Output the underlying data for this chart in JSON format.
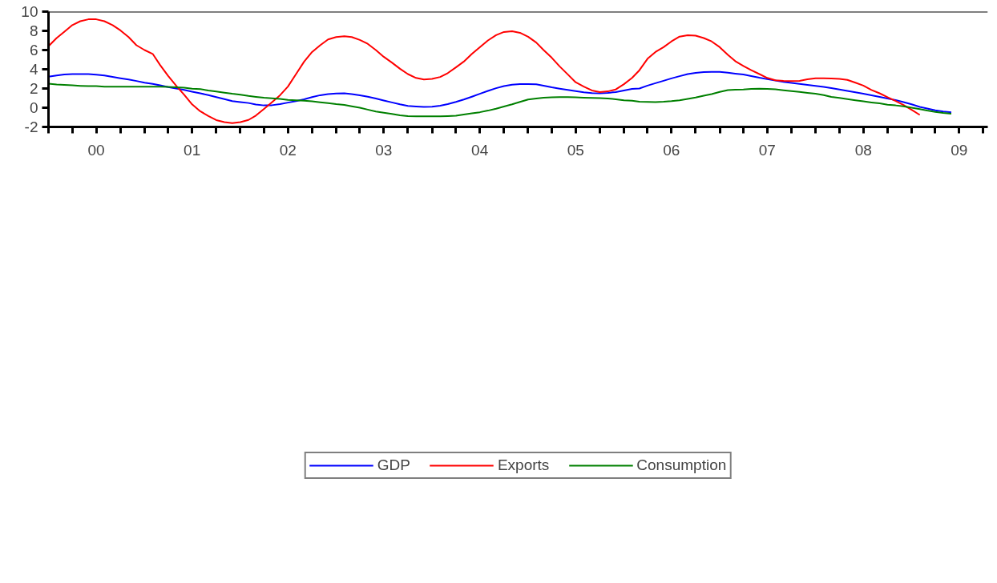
{
  "chart_data": {
    "type": "line",
    "x": [
      "2000-01",
      "2000-02",
      "2000-03",
      "2000-04",
      "2000-05",
      "2000-06",
      "2000-07",
      "2000-08",
      "2000-09",
      "2000-10",
      "2000-11",
      "2000-12",
      "2001-01",
      "2001-02",
      "2001-03",
      "2001-04",
      "2001-05",
      "2001-06",
      "2001-07",
      "2001-08",
      "2001-09",
      "2001-10",
      "2001-11",
      "2001-12",
      "2002-01",
      "2002-02",
      "2002-03",
      "2002-04",
      "2002-05",
      "2002-06",
      "2002-07",
      "2002-08",
      "2002-09",
      "2002-10",
      "2002-11",
      "2002-12",
      "2003-01",
      "2003-02",
      "2003-03",
      "2003-04",
      "2003-05",
      "2003-06",
      "2003-07",
      "2003-08",
      "2003-09",
      "2003-10",
      "2003-11",
      "2003-12",
      "2004-01",
      "2004-02",
      "2004-03",
      "2004-04",
      "2004-05",
      "2004-06",
      "2004-07",
      "2004-08",
      "2004-09",
      "2004-10",
      "2004-11",
      "2004-12",
      "2005-01",
      "2005-02",
      "2005-03",
      "2005-04",
      "2005-05",
      "2005-06",
      "2005-07",
      "2005-08",
      "2005-09",
      "2005-10",
      "2005-11",
      "2005-12",
      "2006-01",
      "2006-02",
      "2006-03",
      "2006-04",
      "2006-05",
      "2006-06",
      "2006-07",
      "2006-08",
      "2006-09",
      "2006-10",
      "2006-11",
      "2006-12",
      "2007-01",
      "2007-02",
      "2007-03",
      "2007-04",
      "2007-05",
      "2007-06",
      "2007-07",
      "2007-08",
      "2007-09",
      "2007-10",
      "2007-11",
      "2007-12",
      "2008-01",
      "2008-02",
      "2008-03",
      "2008-04",
      "2008-05",
      "2008-06",
      "2008-07",
      "2008-08",
      "2008-09",
      "2008-10",
      "2008-11",
      "2008-12",
      "2009-01",
      "2009-02",
      "2009-03",
      "2009-04",
      "2009-05",
      "2009-06"
    ],
    "series": [
      {
        "name": "GDP",
        "color": "#0000ff",
        "values": [
          3.22,
          3.35,
          3.45,
          3.49,
          3.49,
          3.49,
          3.43,
          3.35,
          3.2,
          3.07,
          2.94,
          2.78,
          2.61,
          2.47,
          2.33,
          2.15,
          2.0,
          1.85,
          1.67,
          1.5,
          1.31,
          1.1,
          0.9,
          0.69,
          0.59,
          0.49,
          0.33,
          0.24,
          0.26,
          0.37,
          0.53,
          0.68,
          0.88,
          1.1,
          1.3,
          1.42,
          1.47,
          1.49,
          1.42,
          1.3,
          1.14,
          0.95,
          0.75,
          0.55,
          0.35,
          0.18,
          0.12,
          0.08,
          0.1,
          0.2,
          0.37,
          0.6,
          0.85,
          1.15,
          1.45,
          1.75,
          2.03,
          2.25,
          2.4,
          2.45,
          2.45,
          2.44,
          2.3,
          2.12,
          1.98,
          1.85,
          1.73,
          1.6,
          1.53,
          1.51,
          1.55,
          1.62,
          1.8,
          1.95,
          2.0,
          2.3,
          2.55,
          2.8,
          3.05,
          3.28,
          3.5,
          3.62,
          3.7,
          3.72,
          3.72,
          3.65,
          3.55,
          3.45,
          3.3,
          3.12,
          2.97,
          2.83,
          2.68,
          2.58,
          2.47,
          2.38,
          2.27,
          2.17,
          2.05,
          1.9,
          1.75,
          1.6,
          1.45,
          1.3,
          1.12,
          0.95,
          0.8,
          0.58,
          0.35,
          0.08,
          -0.08,
          -0.27,
          -0.4,
          -0.48
        ]
      },
      {
        "name": "Exports",
        "color": "#ff0000",
        "values": [
          6.4,
          7.25,
          7.9,
          8.6,
          9.0,
          9.2,
          9.2,
          9.0,
          8.6,
          8.05,
          7.35,
          6.5,
          6.0,
          5.6,
          4.45,
          3.3,
          2.3,
          1.35,
          0.35,
          -0.37,
          -0.86,
          -1.29,
          -1.5,
          -1.6,
          -1.5,
          -1.27,
          -0.82,
          -0.12,
          0.57,
          1.3,
          2.2,
          3.5,
          4.8,
          5.8,
          6.5,
          7.1,
          7.35,
          7.43,
          7.35,
          7.05,
          6.65,
          6.0,
          5.3,
          4.7,
          4.05,
          3.5,
          3.1,
          2.94,
          3.0,
          3.2,
          3.6,
          4.2,
          4.8,
          5.6,
          6.3,
          7.0,
          7.55,
          7.88,
          7.96,
          7.8,
          7.39,
          6.78,
          6.0,
          5.2,
          4.3,
          3.47,
          2.65,
          2.2,
          1.8,
          1.63,
          1.7,
          1.9,
          2.45,
          3.1,
          3.9,
          5.1,
          5.8,
          6.3,
          6.9,
          7.4,
          7.55,
          7.5,
          7.25,
          6.9,
          6.3,
          5.5,
          4.85,
          4.35,
          3.9,
          3.5,
          3.1,
          2.85,
          2.79,
          2.77,
          2.8,
          2.95,
          3.06,
          3.06,
          3.05,
          3.0,
          2.9,
          2.6,
          2.3,
          1.85,
          1.5,
          1.1,
          0.7,
          0.29,
          -0.22,
          -0.75,
          null,
          null,
          null,
          null
        ]
      },
      {
        "name": "Consumption",
        "color": "#008000",
        "values": [
          2.49,
          2.41,
          2.37,
          2.33,
          2.28,
          2.24,
          2.24,
          2.18,
          2.18,
          2.18,
          2.18,
          2.18,
          2.18,
          2.18,
          2.18,
          2.16,
          2.12,
          2.08,
          1.98,
          1.94,
          1.8,
          1.69,
          1.57,
          1.45,
          1.35,
          1.22,
          1.13,
          1.04,
          0.98,
          0.92,
          0.82,
          0.78,
          0.72,
          0.67,
          0.57,
          0.47,
          0.37,
          0.3,
          0.15,
          0.0,
          -0.2,
          -0.4,
          -0.52,
          -0.65,
          -0.8,
          -0.88,
          -0.9,
          -0.9,
          -0.89,
          -0.9,
          -0.88,
          -0.84,
          -0.7,
          -0.58,
          -0.47,
          -0.3,
          -0.1,
          0.12,
          0.35,
          0.6,
          0.86,
          0.95,
          1.04,
          1.08,
          1.1,
          1.1,
          1.08,
          1.05,
          1.02,
          0.99,
          0.96,
          0.88,
          0.78,
          0.73,
          0.62,
          0.6,
          0.58,
          0.62,
          0.68,
          0.78,
          0.92,
          1.06,
          1.25,
          1.42,
          1.65,
          1.84,
          1.87,
          1.9,
          1.95,
          1.97,
          1.95,
          1.92,
          1.82,
          1.73,
          1.65,
          1.55,
          1.45,
          1.32,
          1.12,
          1.02,
          0.9,
          0.78,
          0.66,
          0.55,
          0.45,
          0.32,
          0.24,
          0.14,
          0.0,
          -0.14,
          -0.3,
          -0.44,
          -0.55,
          -0.63
        ]
      }
    ],
    "xlim": [
      "2000-01",
      "2009-10-18"
    ],
    "xticks": [
      {
        "value": "2000-01",
        "label": null
      },
      {
        "value": "2000-04",
        "label": null
      },
      {
        "value": "2000-07",
        "label": "00"
      },
      {
        "value": "2000-10",
        "label": null
      },
      {
        "value": "2001-01",
        "label": null
      },
      {
        "value": "2001-04",
        "label": null
      },
      {
        "value": "2001-07",
        "label": "01"
      },
      {
        "value": "2001-10",
        "label": null
      },
      {
        "value": "2002-01",
        "label": null
      },
      {
        "value": "2002-04",
        "label": null
      },
      {
        "value": "2002-07",
        "label": "02"
      },
      {
        "value": "2002-10",
        "label": null
      },
      {
        "value": "2003-01",
        "label": null
      },
      {
        "value": "2003-04",
        "label": null
      },
      {
        "value": "2003-07",
        "label": "03"
      },
      {
        "value": "2003-10",
        "label": null
      },
      {
        "value": "2004-01",
        "label": null
      },
      {
        "value": "2004-04",
        "label": null
      },
      {
        "value": "2004-07",
        "label": "04"
      },
      {
        "value": "2004-10",
        "label": null
      },
      {
        "value": "2005-01",
        "label": null
      },
      {
        "value": "2005-04",
        "label": null
      },
      {
        "value": "2005-07",
        "label": "05"
      },
      {
        "value": "2005-10",
        "label": null
      },
      {
        "value": "2006-01",
        "label": null
      },
      {
        "value": "2006-04",
        "label": null
      },
      {
        "value": "2006-07",
        "label": "06"
      },
      {
        "value": "2006-10",
        "label": null
      },
      {
        "value": "2007-01",
        "label": null
      },
      {
        "value": "2007-04",
        "label": null
      },
      {
        "value": "2007-07",
        "label": "07"
      },
      {
        "value": "2007-10",
        "label": null
      },
      {
        "value": "2008-01",
        "label": null
      },
      {
        "value": "2008-04",
        "label": null
      },
      {
        "value": "2008-07",
        "label": "08"
      },
      {
        "value": "2008-10",
        "label": null
      },
      {
        "value": "2009-01",
        "label": null
      },
      {
        "value": "2009-04",
        "label": null
      },
      {
        "value": "2009-07",
        "label": "09"
      },
      {
        "value": "2009-10",
        "label": null
      }
    ],
    "ylim": [
      -2,
      10
    ],
    "yticks": [
      -2,
      0,
      2,
      4,
      6,
      8,
      10
    ],
    "grid": false,
    "legend": "bottom",
    "marker": "none",
    "line_style": "solid"
  }
}
